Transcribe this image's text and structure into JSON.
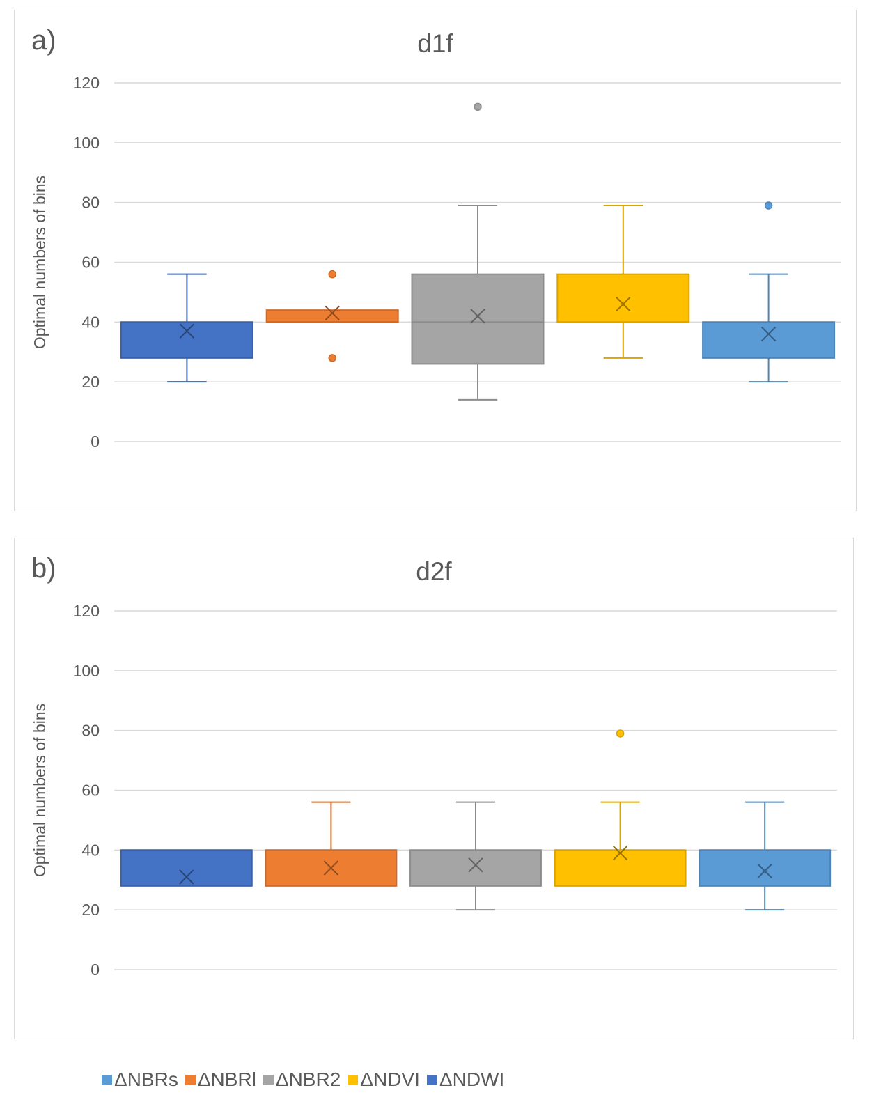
{
  "legend": [
    {
      "name": "ΔNBRs",
      "color": "#5B9BD5"
    },
    {
      "name": "ΔNBRl",
      "color": "#ED7D31"
    },
    {
      "name": "ΔNBR2",
      "color": "#A5A5A5"
    },
    {
      "name": "ΔNDVI",
      "color": "#FFC000"
    },
    {
      "name": "ΔNDWI",
      "color": "#4472C4"
    }
  ],
  "chart_data": [
    {
      "type": "box",
      "panel_label": "a)",
      "title": "d1f",
      "xlabel": "",
      "ylabel": "Optimal numbers of bins",
      "ylim": [
        0,
        120
      ],
      "yticks": [
        "0",
        "20",
        "40",
        "60",
        "80",
        "100",
        "120"
      ],
      "grid": true,
      "series": [
        {
          "name": "ΔNDWI",
          "color": "#4472C4",
          "min": 20,
          "q1": 28,
          "median": 40,
          "q3": 40,
          "max": 56,
          "mean": 37,
          "outliers": []
        },
        {
          "name": "ΔNBRl",
          "color": "#ED7D31",
          "min": 40,
          "q1": 40,
          "median": 40,
          "q3": 44,
          "max": 44,
          "mean": 43,
          "outliers": [
            56,
            28
          ]
        },
        {
          "name": "ΔNBR2",
          "color": "#A5A5A5",
          "min": 14,
          "q1": 26,
          "median": 40,
          "q3": 56,
          "max": 79,
          "mean": 42,
          "outliers": [
            112
          ]
        },
        {
          "name": "ΔNDVI",
          "color": "#FFC000",
          "min": 28,
          "q1": 40,
          "median": 40,
          "q3": 56,
          "max": 79,
          "mean": 46,
          "outliers": []
        },
        {
          "name": "ΔNBRs",
          "color": "#5B9BD5",
          "min": 20,
          "q1": 28,
          "median": 40,
          "q3": 40,
          "max": 56,
          "mean": 36,
          "outliers": [
            79
          ]
        }
      ]
    },
    {
      "type": "box",
      "panel_label": "b)",
      "title": "d2f",
      "xlabel": "",
      "ylabel": "Optimal numbers of bins",
      "ylim": [
        0,
        120
      ],
      "yticks": [
        "0",
        "20",
        "40",
        "60",
        "80",
        "100",
        "120"
      ],
      "grid": true,
      "series": [
        {
          "name": "ΔNDWI",
          "color": "#4472C4",
          "min": 28,
          "q1": 28,
          "median": 40,
          "q3": 40,
          "max": 40,
          "mean": 31,
          "outliers": []
        },
        {
          "name": "ΔNBRl",
          "color": "#ED7D31",
          "min": 28,
          "q1": 28,
          "median": 40,
          "q3": 40,
          "max": 56,
          "mean": 34,
          "outliers": []
        },
        {
          "name": "ΔNBR2",
          "color": "#A5A5A5",
          "min": 20,
          "q1": 28,
          "median": 40,
          "q3": 40,
          "max": 56,
          "mean": 35,
          "outliers": []
        },
        {
          "name": "ΔNDVI",
          "color": "#FFC000",
          "min": 28,
          "q1": 28,
          "median": 40,
          "q3": 40,
          "max": 56,
          "mean": 39,
          "outliers": [
            79
          ]
        },
        {
          "name": "ΔNBRs",
          "color": "#5B9BD5",
          "min": 20,
          "q1": 28,
          "median": 40,
          "q3": 40,
          "max": 56,
          "mean": 33,
          "outliers": []
        }
      ]
    }
  ]
}
